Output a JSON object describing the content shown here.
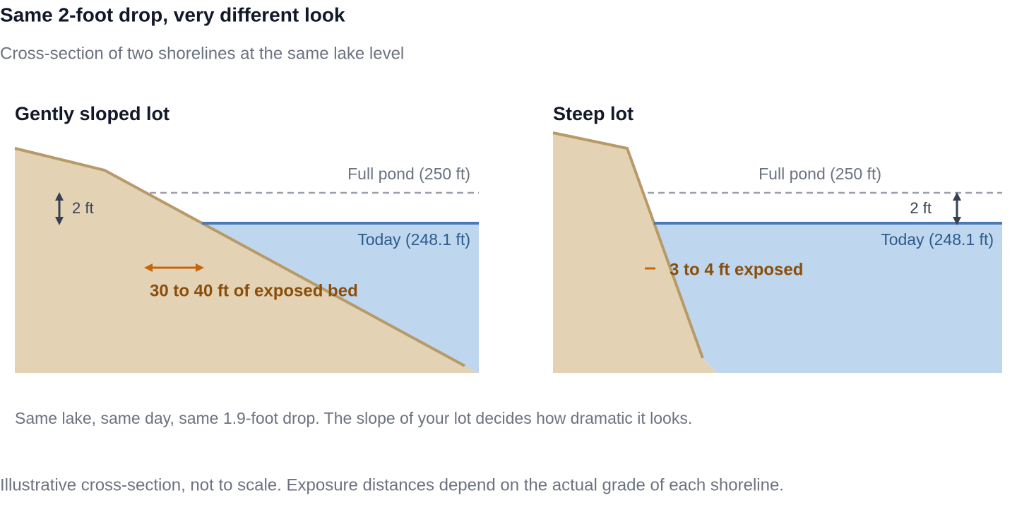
{
  "header": {
    "title": "Same 2-foot drop, very different look",
    "subtitle": "Cross-section of two shorelines at the same lake level"
  },
  "panels": [
    {
      "title": "Gently sloped lot",
      "full_pond_label": "Full pond (250 ft)",
      "today_label": "Today (248.1 ft)",
      "drop_label": "2 ft",
      "exposed_label": "30 to 40 ft of exposed bed"
    },
    {
      "title": "Steep lot",
      "full_pond_label": "Full pond (250 ft)",
      "today_label": "Today (248.1 ft)",
      "drop_label": "2 ft",
      "exposed_label": "3 to 4 ft exposed"
    }
  ],
  "caption": "Same lake, same day, same 1.9-foot drop. The slope of your lot decides how dramatic it looks.",
  "footnote": "Illustrative cross-section, not to scale. Exposure distances depend on the actual grade of each shoreline."
}
